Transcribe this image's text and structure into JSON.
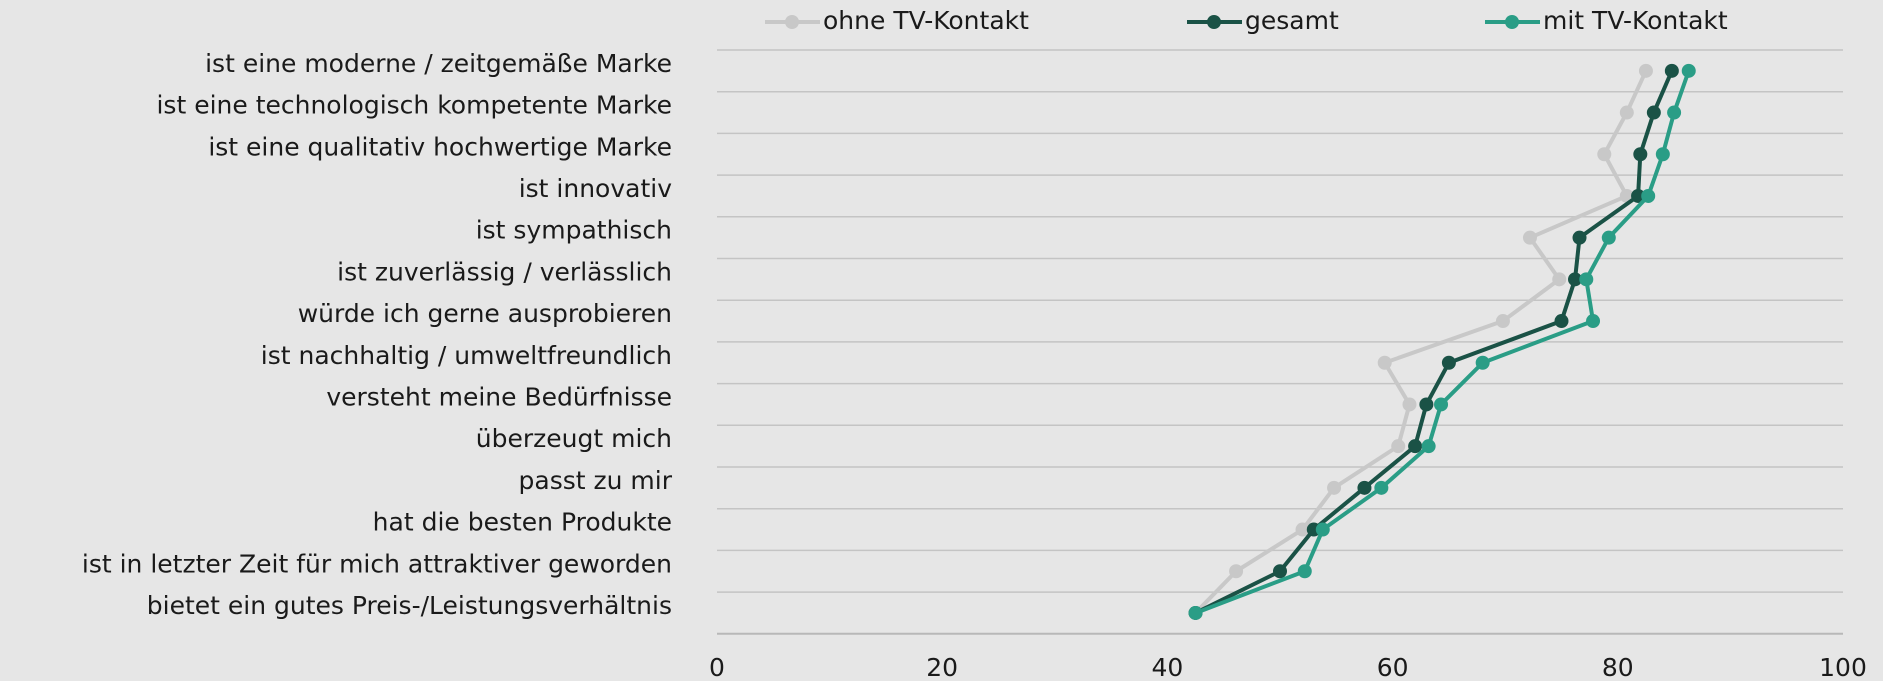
{
  "chart_data": {
    "type": "line",
    "categories": [
      "ist eine moderne / zeitgemäße Marke",
      "ist eine technologisch kompetente Marke",
      "ist eine qualitativ hochwertige Marke",
      "ist innovativ",
      "ist sympathisch",
      "ist zuverlässig / verlässlich",
      "würde ich gerne ausprobieren",
      "ist nachhaltig / umweltfreundlich",
      "versteht meine Bedürfnisse",
      "überzeugt mich",
      "passt zu mir",
      "hat die besten Produkte",
      "ist in letzter Zeit für mich attraktiver geworden",
      "bietet ein gutes Preis-/Leistungsverhältnis"
    ],
    "series": [
      {
        "name": "ohne TV-Kontakt",
        "color": "#c8c8c8",
        "values": [
          82.5,
          80.8,
          78.8,
          80.8,
          72.2,
          74.8,
          69.8,
          59.3,
          61.5,
          60.5,
          54.8,
          52,
          46.1,
          42.5
        ]
      },
      {
        "name": "gesamt",
        "color": "#1a5246",
        "values": [
          84.8,
          83.2,
          82,
          81.8,
          76.6,
          76.2,
          75,
          65,
          63,
          62,
          57.5,
          53,
          50,
          42.5
        ]
      },
      {
        "name": "mit TV-Kontakt",
        "color": "#2a9d86",
        "values": [
          86.3,
          85,
          84,
          82.7,
          79.2,
          77.2,
          77.8,
          68,
          64.3,
          63.2,
          59,
          53.8,
          52.2,
          42.5
        ]
      }
    ],
    "xlim": [
      0,
      100
    ],
    "xticks": [
      0,
      20,
      40,
      60,
      80,
      100
    ],
    "grid": true,
    "legend": "top"
  }
}
